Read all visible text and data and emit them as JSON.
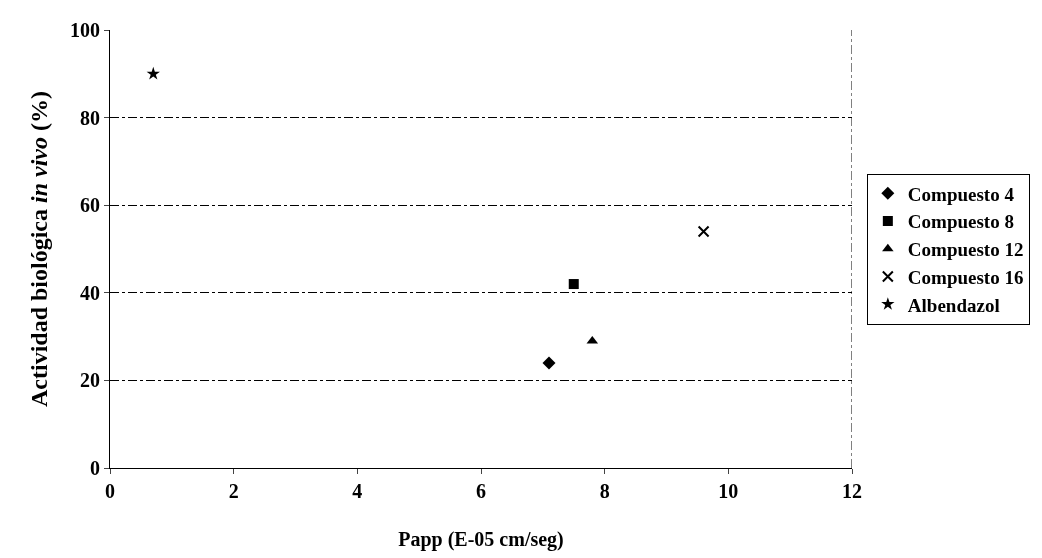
{
  "chart_data": {
    "type": "scatter",
    "xlabel": "Papp (E-05 cm/seg)",
    "ylabel": "Actividad biológica in vivo (%)",
    "xlim": [
      0,
      12
    ],
    "xticks": [
      0,
      2,
      4,
      6,
      8,
      10,
      12
    ],
    "ylim": [
      0,
      100
    ],
    "yticks": [
      0,
      20,
      40,
      60,
      80,
      100
    ],
    "grid": "y",
    "legend": "right",
    "series": [
      {
        "name": "Compuesto 4",
        "color": "#000000",
        "marker": "diamond",
        "x": [
          7.1
        ],
        "values": [
          24
        ]
      },
      {
        "name": "Compuesto 8",
        "color": "#000000",
        "marker": "square",
        "x": [
          7.5
        ],
        "values": [
          42
        ]
      },
      {
        "name": "Compuesto 12",
        "color": "#000000",
        "marker": "triangle",
        "x": [
          7.8
        ],
        "values": [
          29
        ]
      },
      {
        "name": "Compuesto 16",
        "color": "#000000",
        "marker": "cross",
        "x": [
          9.6
        ],
        "values": [
          54
        ]
      },
      {
        "name": "Albendazol",
        "color": "#000000",
        "marker": "star",
        "x": [
          0.7
        ],
        "values": [
          90
        ]
      }
    ]
  }
}
